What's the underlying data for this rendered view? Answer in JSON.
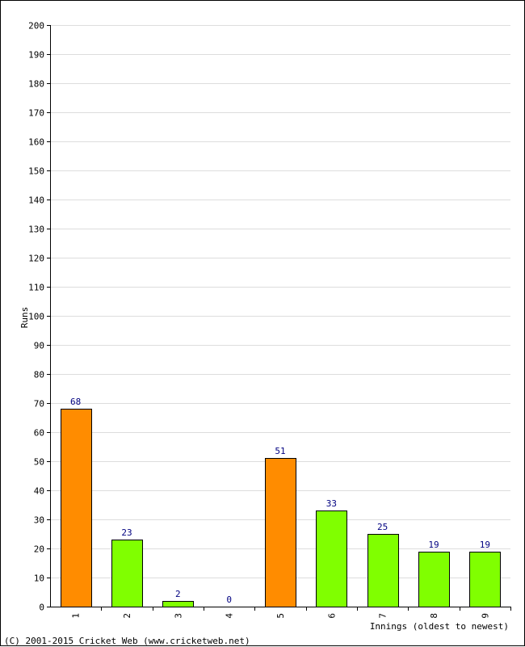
{
  "chart_data": {
    "type": "bar",
    "ylabel": "Runs",
    "xlabel": "Innings (oldest to newest)",
    "ylim": [
      0,
      200
    ],
    "ytick_step": 10,
    "grid": true,
    "categories": [
      "1",
      "2",
      "3",
      "4",
      "5",
      "6",
      "7",
      "8",
      "9"
    ],
    "values": [
      68,
      23,
      2,
      0,
      51,
      33,
      25,
      19,
      19
    ],
    "value_labels": [
      "68",
      "23",
      "2",
      "0",
      "51",
      "33",
      "25",
      "19",
      "19"
    ],
    "bar_colors": [
      "#ff8c00",
      "#80ff00",
      "#80ff00",
      "#80ff00",
      "#ff8c00",
      "#80ff00",
      "#80ff00",
      "#80ff00",
      "#80ff00"
    ],
    "colors": {
      "fifty_plus": "#ff8c00",
      "under_fifty": "#80ff00",
      "value_label": "#000080",
      "grid": "#dddddd"
    }
  },
  "footer": {
    "copyright": "(C) 2001-2015 Cricket Web (www.cricketweb.net)"
  }
}
